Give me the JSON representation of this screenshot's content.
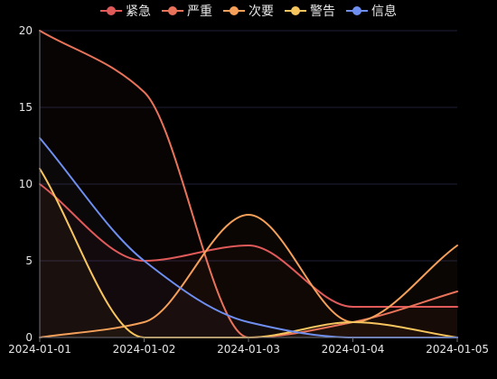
{
  "chart_data": {
    "type": "line",
    "x": [
      "2024-01-01",
      "2024-01-02",
      "2024-01-03",
      "2024-01-04",
      "2024-01-05"
    ],
    "ylim": [
      0,
      20
    ],
    "yticks": [
      0,
      5,
      10,
      15,
      20
    ],
    "grid": true,
    "legend_position": "top-center",
    "series": [
      {
        "name": "紧急",
        "color": "#e05a5a",
        "values": [
          10,
          5,
          6,
          2,
          2
        ]
      },
      {
        "name": "严重",
        "color": "#e8735a",
        "values": [
          20,
          16,
          0,
          1,
          3
        ]
      },
      {
        "name": "次要",
        "color": "#f5a05a",
        "values": [
          0,
          1,
          8,
          1,
          6
        ]
      },
      {
        "name": "警告",
        "color": "#f7c55e",
        "values": [
          11,
          0,
          0,
          1,
          0
        ]
      },
      {
        "name": "信息",
        "color": "#6f8ff0",
        "values": [
          13,
          5,
          1,
          0,
          0
        ]
      }
    ]
  }
}
